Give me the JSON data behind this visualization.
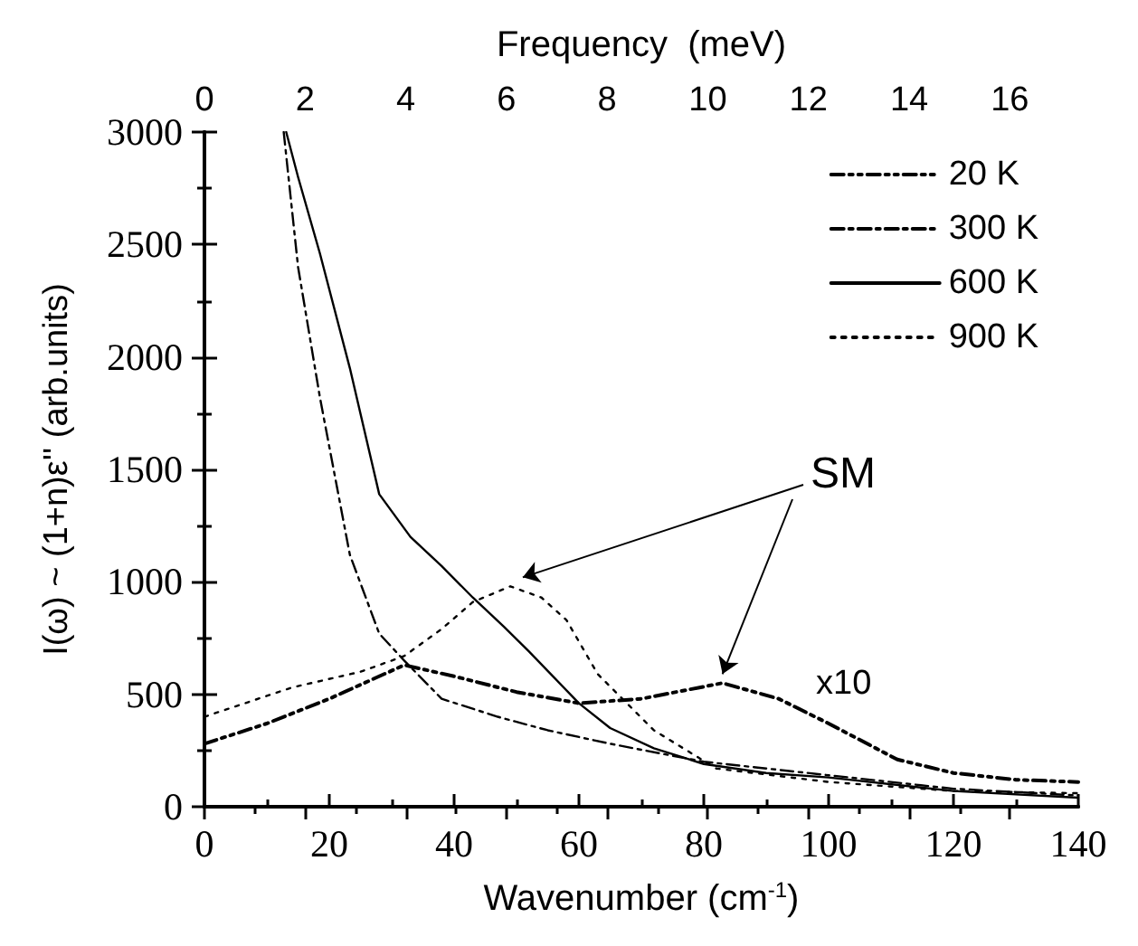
{
  "chart_data": {
    "type": "line",
    "xlabel": "Wavenumber (cm$^{-1}$)",
    "ylabel": "I(ω) ~ (1+n)ε'' (arb.units)",
    "x2label": "Frequency  (meV)",
    "xlim": [
      0,
      140
    ],
    "xticks": [
      0,
      20,
      40,
      60,
      80,
      100,
      120,
      140
    ],
    "ylim": [
      0,
      3000
    ],
    "yticks": [
      0,
      500,
      1000,
      1500,
      2000,
      2500,
      3000
    ],
    "x2lim": [
      0,
      17.36
    ],
    "x2ticks": [
      0,
      2,
      4,
      6,
      8,
      10,
      12,
      14,
      16
    ],
    "legend": "top right",
    "grid": false,
    "marker": "none",
    "annotations": [
      {
        "text": "SM",
        "x": 83,
        "y": 550
      },
      "x10"
    ],
    "series": [
      {
        "name": "20 K",
        "color": "#000000",
        "line_style": "dashed",
        "x": [
          0,
          10,
          20,
          32,
          40,
          50,
          60,
          70,
          83,
          92,
          100,
          111,
          120,
          130,
          140
        ],
        "values": [
          280,
          370,
          480,
          630,
          580,
          510,
          460,
          480,
          550,
          480,
          370,
          210,
          150,
          120,
          110
        ]
      },
      {
        "name": "300 K",
        "color": "#000000",
        "line_style": "dashed",
        "x": [
          12.7,
          15,
          18.5,
          23.3,
          28,
          32,
          38,
          47,
          55,
          65,
          80,
          100,
          120,
          140
        ],
        "values": [
          3000,
          2400,
          1820,
          1120,
          770,
          650,
          480,
          400,
          340,
          280,
          200,
          140,
          80,
          50
        ]
      },
      {
        "name": "600 K",
        "color": "#000000",
        "line_style": "solid",
        "x": [
          13.1,
          15,
          18.5,
          23.3,
          28,
          33,
          38,
          43,
          48,
          52,
          60,
          65,
          72,
          80,
          90,
          100,
          120,
          140
        ],
        "values": [
          3000,
          2800,
          2460,
          1950,
          1390,
          1200,
          1070,
          930,
          800,
          690,
          460,
          350,
          260,
          190,
          150,
          130,
          70,
          40
        ]
      },
      {
        "name": "900 K",
        "color": "#000000",
        "line_style": "dotted",
        "x": [
          0,
          14,
          25,
          32,
          38,
          43,
          49,
          54,
          58,
          63,
          72,
          82,
          100,
          120,
          140
        ],
        "values": [
          400,
          530,
          600,
          670,
          790,
          910,
          980,
          930,
          830,
          590,
          340,
          170,
          110,
          70,
          60
        ]
      }
    ]
  }
}
